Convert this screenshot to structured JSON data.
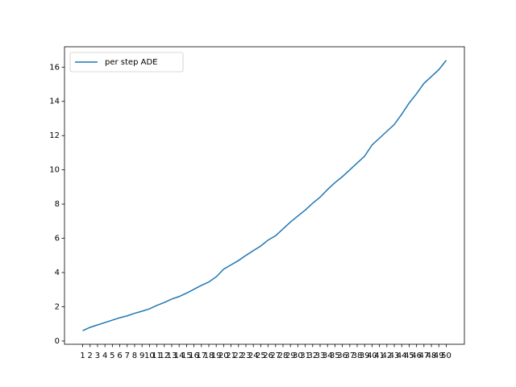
{
  "chart_data": {
    "type": "line",
    "categories": [
      "1",
      "2",
      "3",
      "4",
      "5",
      "6",
      "7",
      "8",
      "9",
      "10",
      "11",
      "12",
      "13",
      "14",
      "15",
      "16",
      "17",
      "18",
      "19",
      "20",
      "21",
      "22",
      "23",
      "24",
      "25",
      "26",
      "27",
      "28",
      "29",
      "30",
      "31",
      "32",
      "33",
      "34",
      "35",
      "36",
      "37",
      "38",
      "39",
      "40",
      "41",
      "42",
      "43",
      "44",
      "45",
      "46",
      "47",
      "48",
      "49",
      "50"
    ],
    "series": [
      {
        "name": "per step ADE",
        "color": "#1f77b4",
        "values": [
          0.6,
          0.8,
          0.94,
          1.08,
          1.22,
          1.36,
          1.47,
          1.62,
          1.74,
          1.88,
          2.08,
          2.25,
          2.45,
          2.6,
          2.8,
          3.02,
          3.25,
          3.45,
          3.75,
          4.2,
          4.45,
          4.7,
          5.0,
          5.28,
          5.55,
          5.9,
          6.15,
          6.55,
          6.95,
          7.3,
          7.65,
          8.05,
          8.4,
          8.85,
          9.25,
          9.6,
          10.0,
          10.4,
          10.8,
          11.45,
          11.85,
          12.25,
          12.65,
          13.25,
          13.9,
          14.45,
          15.05,
          15.45,
          15.85,
          16.4
        ]
      }
    ],
    "ylim": [
      -0.19,
      17.19
    ],
    "yticks": [
      0,
      2,
      4,
      6,
      8,
      10,
      12,
      14,
      16
    ],
    "legend": "upper left"
  }
}
